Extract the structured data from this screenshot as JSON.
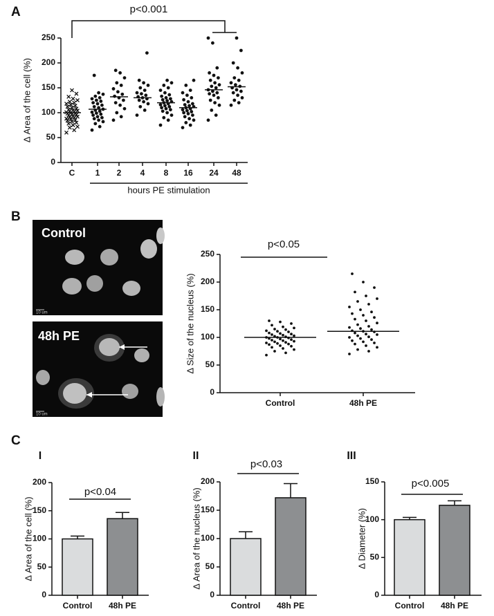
{
  "panels": [
    "A",
    "B",
    "C"
  ],
  "images": [
    {
      "label": "Control",
      "scale_bar": "10 um"
    },
    {
      "label": "48h PE",
      "scale_bar": "10 um"
    }
  ],
  "chart_data": [
    {
      "type": "strip",
      "ylabel": "Δ Area of the cell (%)",
      "xlabel": "hours PE stimulation",
      "annotation": "p<0.001",
      "categories": [
        "C",
        "1",
        "2",
        "4",
        "8",
        "16",
        "24",
        "48"
      ],
      "ylim": [
        0,
        250
      ],
      "yticks": [
        0,
        50,
        100,
        150,
        200,
        250
      ],
      "color": "#111111",
      "groups": [
        [
          60,
          65,
          70,
          72,
          75,
          78,
          80,
          82,
          84,
          85,
          87,
          88,
          90,
          91,
          92,
          93,
          95,
          96,
          97,
          98,
          99,
          100,
          101,
          102,
          103,
          104,
          105,
          106,
          108,
          110,
          112,
          114,
          116,
          118,
          120,
          122,
          125,
          128,
          132,
          138,
          145
        ],
        [
          65,
          72,
          78,
          82,
          85,
          88,
          90,
          92,
          95,
          97,
          99,
          101,
          103,
          105,
          107,
          110,
          112,
          115,
          118,
          120,
          123,
          125,
          128,
          130,
          133,
          137,
          140,
          175
        ],
        [
          85,
          92,
          100,
          108,
          115,
          120,
          125,
          130,
          133,
          137,
          142,
          148,
          155,
          160,
          170,
          180,
          185
        ],
        [
          95,
          105,
          112,
          118,
          122,
          125,
          128,
          130,
          132,
          135,
          138,
          140,
          145,
          150,
          155,
          160,
          165,
          220
        ],
        [
          75,
          85,
          90,
          95,
          100,
          103,
          106,
          108,
          110,
          112,
          114,
          116,
          118,
          120,
          122,
          124,
          126,
          128,
          130,
          133,
          136,
          140,
          145,
          150,
          155,
          160,
          165
        ],
        [
          70,
          75,
          80,
          85,
          88,
          92,
          95,
          98,
          100,
          102,
          104,
          106,
          108,
          110,
          112,
          114,
          116,
          118,
          122,
          126,
          130,
          135,
          140,
          145,
          155,
          165
        ],
        [
          85,
          95,
          105,
          115,
          120,
          125,
          130,
          135,
          138,
          140,
          143,
          146,
          150,
          153,
          156,
          160,
          165,
          170,
          175,
          180,
          190,
          240,
          250
        ],
        [
          115,
          120,
          125,
          130,
          135,
          140,
          143,
          146,
          150,
          153,
          156,
          160,
          165,
          170,
          180,
          190,
          200,
          225,
          250
        ]
      ],
      "means": [
        100,
        107,
        132,
        130,
        120,
        110,
        146,
        152
      ]
    },
    {
      "type": "strip",
      "ylabel": "Δ Size of the nucleus (%)",
      "annotation": "p<0.05",
      "categories": [
        "Control",
        "48h PE"
      ],
      "ylim": [
        0,
        250
      ],
      "yticks": [
        0,
        50,
        100,
        150,
        200,
        250
      ],
      "color": "#111111",
      "groups": [
        [
          68,
          72,
          75,
          78,
          80,
          82,
          84,
          85,
          87,
          88,
          89,
          90,
          91,
          92,
          93,
          94,
          95,
          96,
          97,
          98,
          99,
          100,
          100,
          101,
          102,
          103,
          104,
          105,
          106,
          107,
          108,
          110,
          111,
          112,
          114,
          115,
          117,
          119,
          122,
          125,
          128,
          130
        ],
        [
          70,
          75,
          78,
          82,
          85,
          88,
          90,
          92,
          94,
          96,
          98,
          100,
          101,
          103,
          105,
          106,
          108,
          110,
          111,
          112,
          114,
          116,
          118,
          120,
          123,
          126,
          130,
          133,
          136,
          140,
          143,
          146,
          150,
          155,
          160,
          165,
          170,
          175,
          182,
          190,
          200,
          215
        ]
      ],
      "means": [
        100,
        111
      ]
    },
    {
      "type": "bar",
      "subtitle": "I",
      "ylabel": "Δ Area of the cell (%)",
      "annotation": "p<0.04",
      "categories": [
        "Control",
        "48h PE"
      ],
      "values": [
        100,
        136
      ],
      "errors": [
        5,
        11
      ],
      "colors": [
        "#dadcdd",
        "#8d8f91"
      ],
      "ylim": [
        0,
        200
      ],
      "yticks": [
        0,
        50,
        100,
        150,
        200
      ]
    },
    {
      "type": "bar",
      "subtitle": "II",
      "ylabel": "Δ Area of the nucleus (%)",
      "annotation": "p<0.03",
      "categories": [
        "Control",
        "48h PE"
      ],
      "values": [
        100,
        172
      ],
      "errors": [
        12,
        25
      ],
      "colors": [
        "#dadcdd",
        "#8d8f91"
      ],
      "ylim": [
        0,
        200
      ],
      "yticks": [
        0,
        50,
        100,
        150,
        200
      ]
    },
    {
      "type": "bar",
      "subtitle": "III",
      "ylabel": "Δ Diameter (%)",
      "annotation": "p<0.005",
      "categories": [
        "Control",
        "48h PE"
      ],
      "values": [
        100,
        119
      ],
      "errors": [
        3,
        6
      ],
      "colors": [
        "#dadcdd",
        "#8d8f91"
      ],
      "ylim": [
        0,
        150
      ],
      "yticks": [
        0,
        50,
        100,
        150
      ]
    }
  ]
}
